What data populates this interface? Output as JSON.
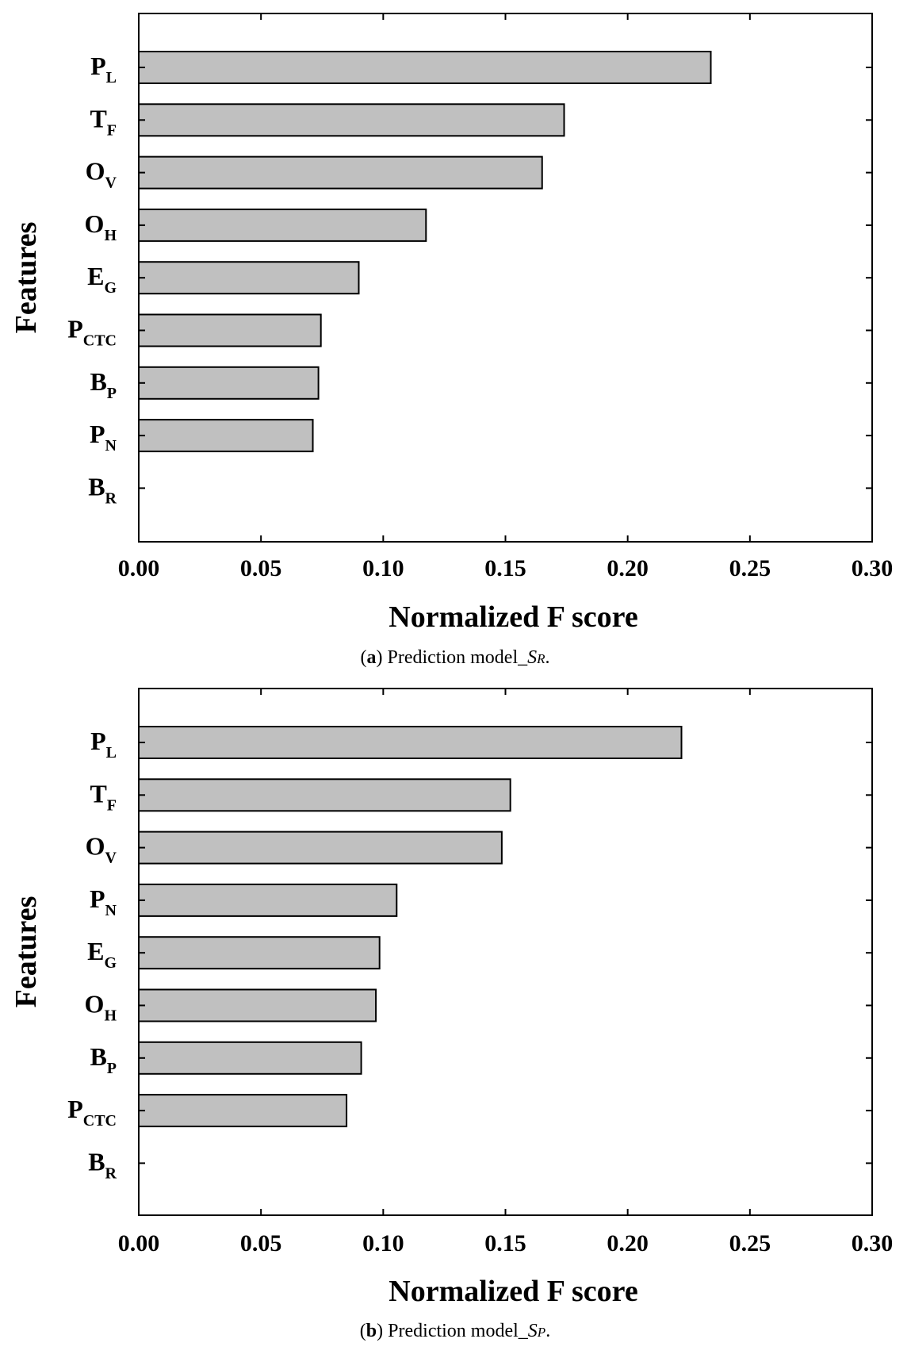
{
  "chart_data": [
    {
      "type": "bar",
      "orientation": "horizontal",
      "xlabel": "Normalized F score",
      "ylabel": "Features",
      "xlim": [
        0,
        0.3
      ],
      "xticks": [
        "0.00",
        "0.05",
        "0.10",
        "0.15",
        "0.20",
        "0.25",
        "0.30"
      ],
      "grid": false,
      "categories": [
        {
          "main": "P",
          "sub": "L"
        },
        {
          "main": "T",
          "sub": "F"
        },
        {
          "main": "O",
          "sub": "V"
        },
        {
          "main": "O",
          "sub": "H"
        },
        {
          "main": "E",
          "sub": "G"
        },
        {
          "main": "P",
          "sub": "CTC"
        },
        {
          "main": "B",
          "sub": "P"
        },
        {
          "main": "P",
          "sub": "N"
        },
        {
          "main": "B",
          "sub": "R"
        }
      ],
      "values": [
        0.234,
        0.174,
        0.165,
        0.1175,
        0.09,
        0.0745,
        0.0735,
        0.0712,
        0
      ],
      "caption": {
        "label": "a",
        "text": "Prediction model_",
        "sym": "S",
        "sub": "R"
      },
      "bar_color": "#c0c0c0"
    },
    {
      "type": "bar",
      "orientation": "horizontal",
      "xlabel": "Normalized F score",
      "ylabel": "Features",
      "xlim": [
        0,
        0.3
      ],
      "xticks": [
        "0.00",
        "0.05",
        "0.10",
        "0.15",
        "0.20",
        "0.25",
        "0.30"
      ],
      "grid": false,
      "categories": [
        {
          "main": "P",
          "sub": "L"
        },
        {
          "main": "T",
          "sub": "F"
        },
        {
          "main": "O",
          "sub": "V"
        },
        {
          "main": "P",
          "sub": "N"
        },
        {
          "main": "E",
          "sub": "G"
        },
        {
          "main": "O",
          "sub": "H"
        },
        {
          "main": "B",
          "sub": "P"
        },
        {
          "main": "P",
          "sub": "CTC"
        },
        {
          "main": "B",
          "sub": "R"
        }
      ],
      "values": [
        0.222,
        0.152,
        0.1485,
        0.1055,
        0.0985,
        0.097,
        0.091,
        0.085,
        0
      ],
      "caption": {
        "label": "b",
        "text": "Prediction model_",
        "sym": "S",
        "sub": "P"
      },
      "bar_color": "#c0c0c0"
    }
  ]
}
